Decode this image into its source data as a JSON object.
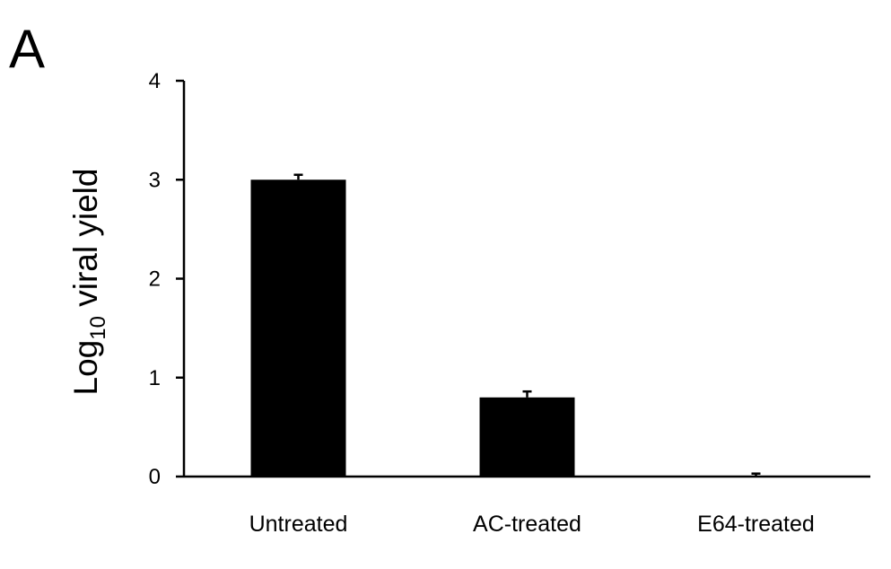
{
  "panel_label": "A",
  "chart_data": {
    "type": "bar",
    "categories": [
      "Untreated",
      "AC-treated",
      "E64-treated"
    ],
    "values": [
      3.0,
      0.8,
      0.0
    ],
    "errors": [
      0.05,
      0.06,
      0.03
    ],
    "title": "",
    "xlabel": "",
    "ylabel": {
      "prefix": "Log",
      "subscript": "10",
      "suffix": " viral yield"
    },
    "ylim": [
      0,
      4
    ],
    "yticks": [
      "0",
      "1",
      "2",
      "3",
      "4"
    ],
    "grid": false,
    "bar_color": "#000000"
  }
}
